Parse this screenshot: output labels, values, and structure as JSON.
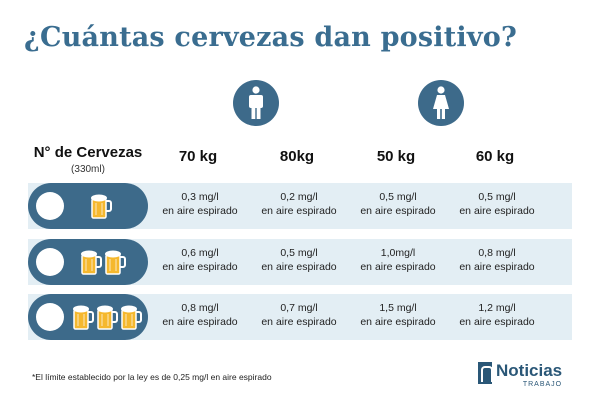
{
  "title": "¿Cuántas cervezas dan positivo?",
  "header": {
    "beers_label": "N° de Cervezas",
    "beers_sub": "(330ml)",
    "columns": [
      "70 kg",
      "80kg",
      "50 kg",
      "60 kg"
    ],
    "groups": [
      {
        "icon": "man-icon",
        "columns": [
          "70 kg",
          "80kg"
        ]
      },
      {
        "icon": "woman-icon",
        "columns": [
          "50 kg",
          "60 kg"
        ]
      }
    ]
  },
  "unit_text": "en aire espirado",
  "rows": [
    {
      "beers": 1,
      "values": [
        "0,3 mg/l",
        "0,2 mg/l",
        "0,5 mg/l",
        "0,5 mg/l"
      ]
    },
    {
      "beers": 2,
      "values": [
        "0,6 mg/l",
        "0,5 mg/l",
        "1,0mg/l",
        "0,8 mg/l"
      ]
    },
    {
      "beers": 3,
      "values": [
        "0,8 mg/l",
        "0,7 mg/l",
        "1,5 mg/l",
        "1,2 mg/l"
      ]
    }
  ],
  "footnote": "*El límite establecido por la ley es de 0,25 mg/l en aire espirado",
  "logo": {
    "name": "Noticias",
    "tag": "TRABAJO"
  },
  "colors": {
    "title": "#3a6d90",
    "accent": "#3d6a8a",
    "row_bg": "#e3eef4",
    "beer": "#f5b82e"
  }
}
